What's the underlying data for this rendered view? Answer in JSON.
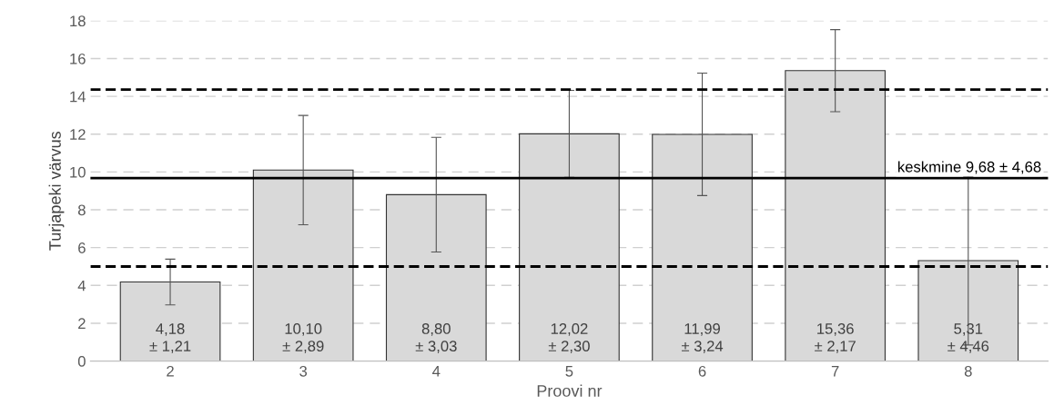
{
  "chart_data": {
    "type": "bar",
    "xlabel": "Proovi nr",
    "ylabel": "Turjapeki värvus",
    "categories": [
      "2",
      "3",
      "4",
      "5",
      "6",
      "7",
      "8"
    ],
    "values": [
      4.18,
      10.1,
      8.8,
      12.02,
      11.99,
      15.36,
      5.31
    ],
    "errors": [
      1.21,
      2.89,
      3.03,
      2.3,
      3.24,
      2.17,
      4.46
    ],
    "value_labels": [
      "4,18\n± 1,21",
      "10,10\n± 2,89",
      "8,80\n± 3,03",
      "12,02\n± 2,30",
      "11,99\n± 3,24",
      "15,36\n± 2,17",
      "5,31\n± 4,46"
    ],
    "color": "#d9d9d9",
    "ylim": [
      0,
      18
    ],
    "yticks": [
      0,
      2,
      4,
      6,
      8,
      10,
      12,
      14,
      16,
      18
    ],
    "grid": "y",
    "ref_lines": [
      {
        "axis": "y",
        "value": 9.68,
        "label": "keskmine 9,68 ± 4,68",
        "color": "#000000",
        "line_style": "solid"
      },
      {
        "axis": "y",
        "value": 14.36,
        "color": "#000000",
        "line_style": "dashed"
      },
      {
        "axis": "y",
        "value": 5.0,
        "color": "#000000",
        "line_style": "dashed"
      }
    ],
    "legend": false
  }
}
